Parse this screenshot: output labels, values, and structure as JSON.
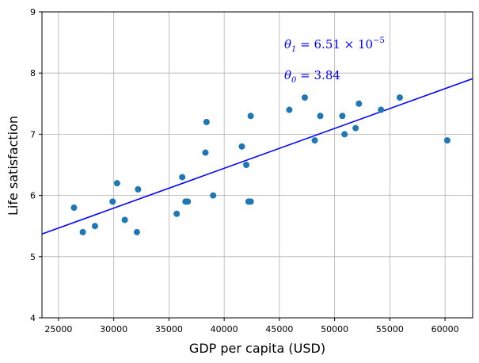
{
  "chart_data": {
    "type": "scatter",
    "xlabel": "GDP per capita (USD)",
    "ylabel": "Life satisfaction",
    "xlim": [
      23500,
      62500
    ],
    "ylim": [
      4,
      9
    ],
    "xticks": [
      25000,
      30000,
      35000,
      40000,
      45000,
      50000,
      55000,
      60000
    ],
    "yticks": [
      4,
      5,
      6,
      7,
      8,
      9
    ],
    "grid": true,
    "point_color": "#1f77b4",
    "line_color": "#0000ff",
    "points": [
      {
        "x": 26400,
        "y": 5.8
      },
      {
        "x": 27200,
        "y": 5.4
      },
      {
        "x": 28300,
        "y": 5.5
      },
      {
        "x": 29900,
        "y": 5.9
      },
      {
        "x": 30300,
        "y": 6.2
      },
      {
        "x": 31000,
        "y": 5.6
      },
      {
        "x": 32100,
        "y": 5.4
      },
      {
        "x": 32200,
        "y": 6.1
      },
      {
        "x": 35700,
        "y": 5.7
      },
      {
        "x": 36200,
        "y": 6.3
      },
      {
        "x": 36500,
        "y": 5.9
      },
      {
        "x": 36700,
        "y": 5.9
      },
      {
        "x": 38300,
        "y": 6.7
      },
      {
        "x": 38400,
        "y": 7.2
      },
      {
        "x": 39000,
        "y": 6.0
      },
      {
        "x": 41600,
        "y": 6.8
      },
      {
        "x": 42000,
        "y": 6.5
      },
      {
        "x": 42200,
        "y": 5.9
      },
      {
        "x": 42400,
        "y": 5.9
      },
      {
        "x": 42400,
        "y": 7.3
      },
      {
        "x": 45900,
        "y": 7.4
      },
      {
        "x": 47300,
        "y": 7.6
      },
      {
        "x": 48200,
        "y": 6.9
      },
      {
        "x": 48700,
        "y": 7.3
      },
      {
        "x": 50700,
        "y": 7.3
      },
      {
        "x": 50900,
        "y": 7.0
      },
      {
        "x": 51900,
        "y": 7.1
      },
      {
        "x": 52200,
        "y": 7.5
      },
      {
        "x": 54200,
        "y": 7.4
      },
      {
        "x": 55900,
        "y": 7.6
      },
      {
        "x": 60200,
        "y": 6.9
      }
    ],
    "fit_line": {
      "theta0": 3.84,
      "theta1": 6.51e-05
    },
    "annotations": [
      {
        "prefix": "θ",
        "subscript": "1",
        "text": " = 6.51 × 10",
        "superscript": "−5"
      },
      {
        "prefix": "θ",
        "subscript": "0",
        "text": " = 3.84",
        "superscript": ""
      }
    ]
  }
}
